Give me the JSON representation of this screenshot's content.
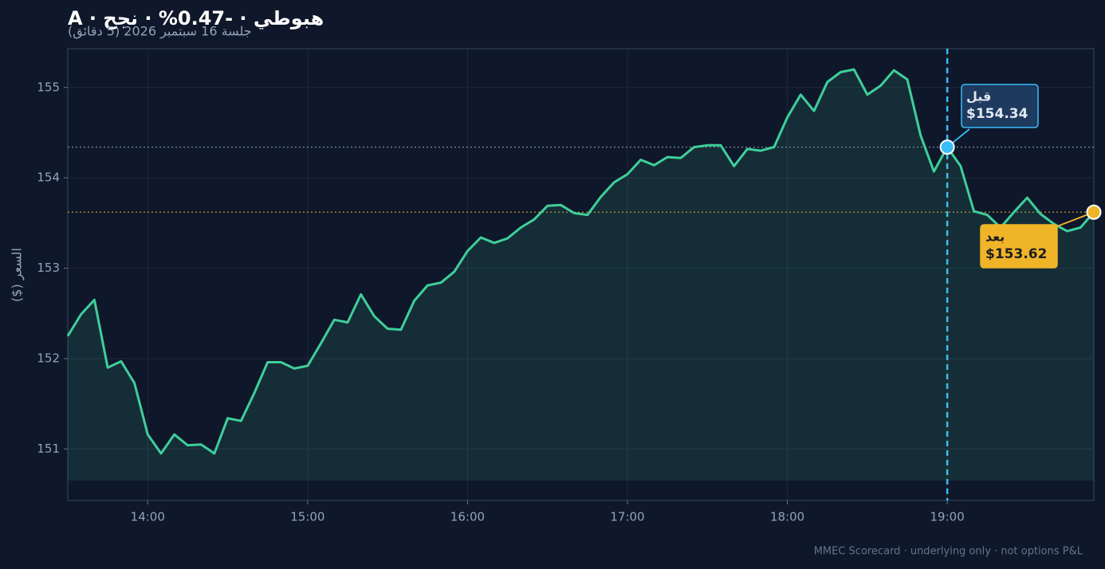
{
  "chart_data": {
    "type": "line",
    "title": "هبوطي · -0.47% · نجح · A",
    "subtitle": "جلسة 16 سبتمبر 2026 (5 دقائق)",
    "y_label": "السعر ($)",
    "footer": "MMEC Scorecard · underlying only · not options P&L",
    "x": [
      "13:30",
      "13:35",
      "13:40",
      "13:45",
      "13:50",
      "13:55",
      "14:00",
      "14:05",
      "14:10",
      "14:15",
      "14:20",
      "14:25",
      "14:30",
      "14:35",
      "14:40",
      "14:45",
      "14:50",
      "14:55",
      "15:00",
      "15:05",
      "15:10",
      "15:15",
      "15:20",
      "15:25",
      "15:30",
      "15:35",
      "15:40",
      "15:45",
      "15:50",
      "15:55",
      "16:00",
      "16:05",
      "16:10",
      "16:15",
      "16:20",
      "16:25",
      "16:30",
      "16:35",
      "16:40",
      "16:45",
      "16:50",
      "16:55",
      "17:00",
      "17:05",
      "17:10",
      "17:15",
      "17:20",
      "17:25",
      "17:30",
      "17:35",
      "17:40",
      "17:45",
      "17:50",
      "17:55",
      "18:00",
      "18:05",
      "18:10",
      "18:15",
      "18:20",
      "18:25",
      "18:30",
      "18:35",
      "18:40",
      "18:45",
      "18:50",
      "18:55",
      "19:00",
      "19:05",
      "19:10",
      "19:15",
      "19:20",
      "19:25",
      "19:30",
      "19:35",
      "19:40",
      "19:45",
      "19:50",
      "19:55"
    ],
    "series": [
      {
        "color": "#3ecf9a",
        "values": [
          152.25,
          152.49,
          152.65,
          151.9,
          151.97,
          151.73,
          151.16,
          150.95,
          151.16,
          151.04,
          151.05,
          150.95,
          151.34,
          151.31,
          151.62,
          151.96,
          151.96,
          151.89,
          151.92,
          152.17,
          152.43,
          152.4,
          152.71,
          152.47,
          152.33,
          152.32,
          152.64,
          152.81,
          152.84,
          152.96,
          153.19,
          153.34,
          153.28,
          153.33,
          153.45,
          153.54,
          153.69,
          153.7,
          153.61,
          153.59,
          153.79,
          153.95,
          154.04,
          154.2,
          154.14,
          154.23,
          154.22,
          154.34,
          154.36,
          154.36,
          154.13,
          154.32,
          154.3,
          154.34,
          154.67,
          154.92,
          154.74,
          155.06,
          155.17,
          155.2,
          154.92,
          155.02,
          155.19,
          155.09,
          154.47,
          154.07,
          154.34,
          154.13,
          153.63,
          153.59,
          153.45,
          153.62,
          153.78,
          153.6,
          153.49,
          153.41,
          153.45,
          153.62
        ]
      }
    ],
    "xlim": [
      "13:30",
      "19:55"
    ],
    "xticks": [
      "14:00",
      "15:00",
      "16:00",
      "17:00",
      "18:00",
      "19:00"
    ],
    "ylim": [
      150.43,
      155.43
    ],
    "yticks": [
      151,
      152,
      153,
      154,
      155
    ],
    "grid": true,
    "annotations": [
      {
        "label": "قبل",
        "x": "19:00",
        "value": 154.34,
        "value_label": "$154.34",
        "color": "#38bdf8"
      },
      {
        "label": "بعد",
        "x": "19:55",
        "value": 153.62,
        "value_label": "$153.62",
        "color": "#f0b429"
      }
    ]
  }
}
